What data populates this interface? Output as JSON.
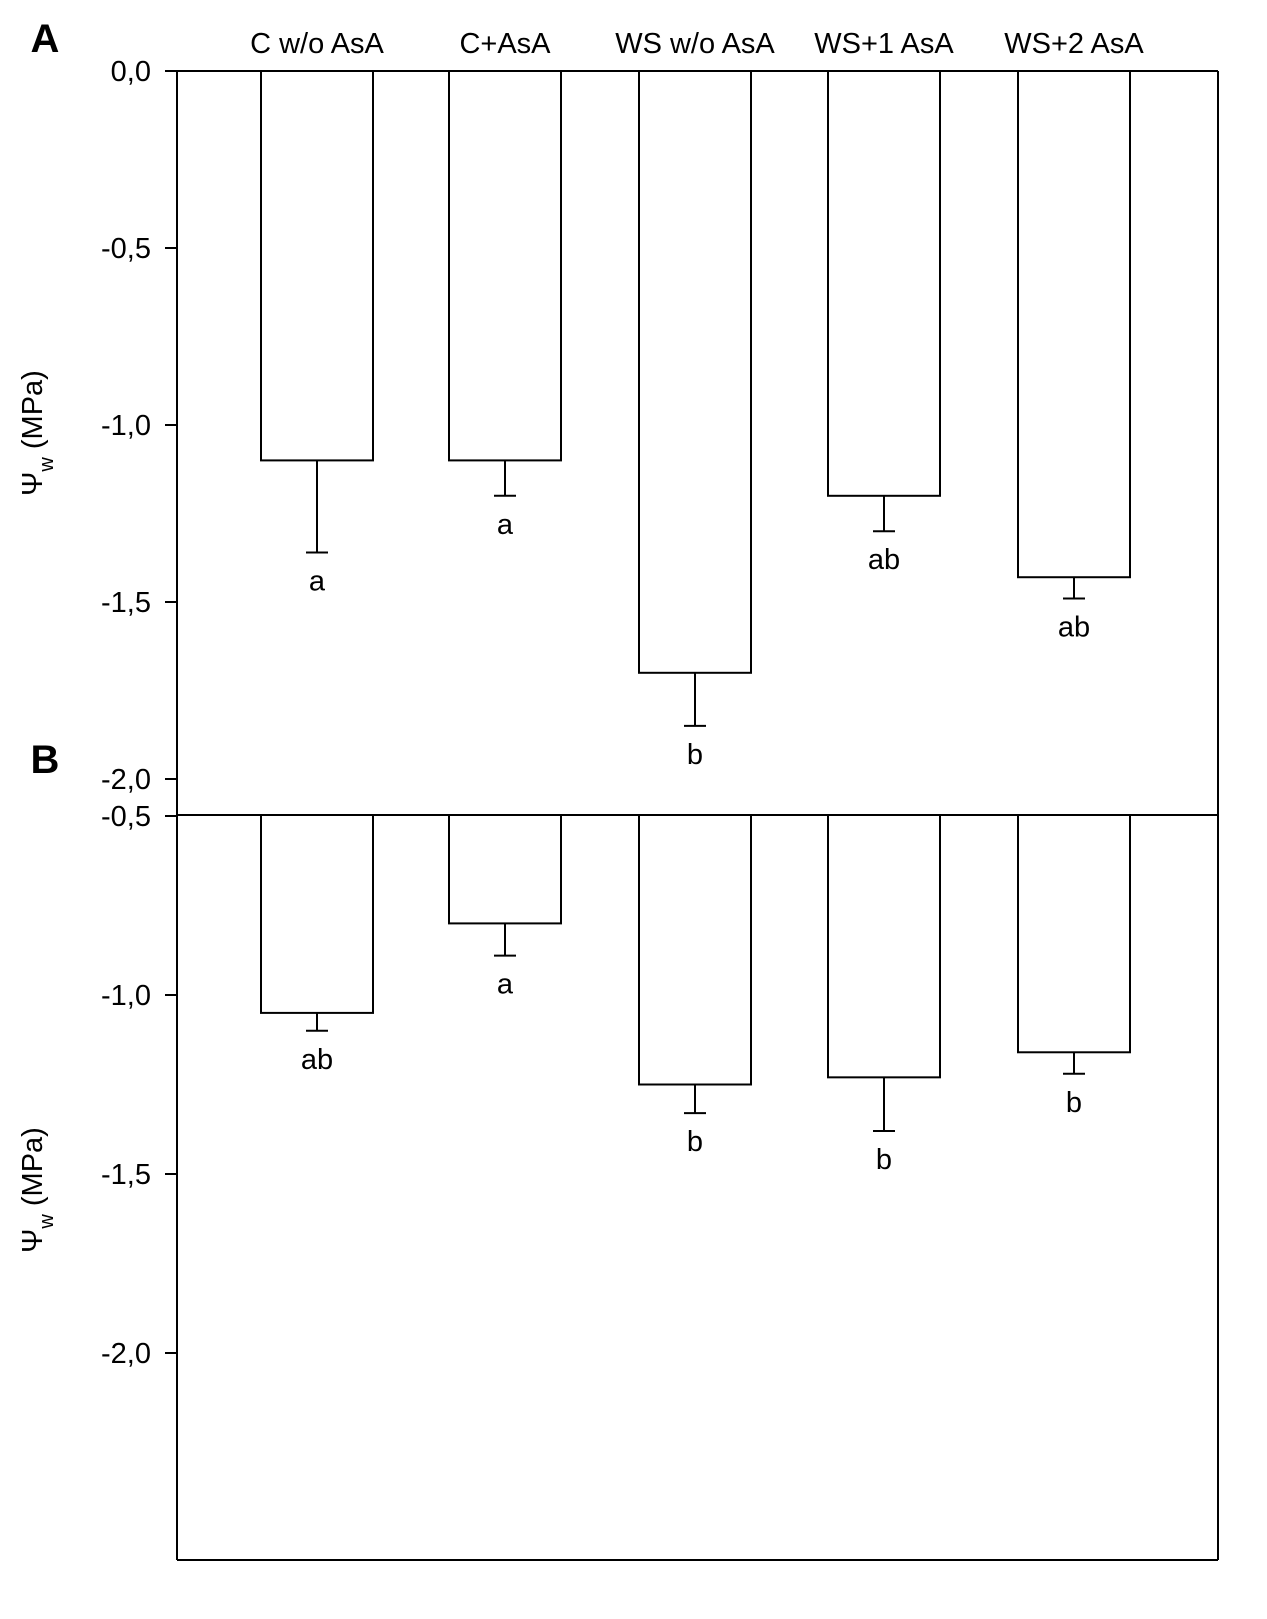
{
  "chart_data": [
    {
      "type": "bar",
      "panel": "A",
      "categories": [
        "C w/o AsA",
        "C+AsA",
        "WS w/o AsA",
        "WS+1 AsA",
        "WS+2 AsA"
      ],
      "values": [
        -1.1,
        -1.1,
        -1.7,
        -1.2,
        -1.43
      ],
      "error": [
        0.26,
        0.1,
        0.15,
        0.1,
        0.06
      ],
      "significance": [
        "a",
        "a",
        "b",
        "ab",
        "ab"
      ],
      "ylabel": "Ψw (MPa)",
      "ylim": [
        -2.1,
        0
      ],
      "yticks": [
        "0,0",
        "-0,5",
        "-1,0",
        "-1,5",
        "-2,0"
      ],
      "ytick_values": [
        0,
        -0.5,
        -1.0,
        -1.5,
        -2.0
      ],
      "xaxis_position": "top",
      "grid": false,
      "bar_fill": "#ffffff",
      "bar_stroke": "#000000"
    },
    {
      "type": "bar",
      "panel": "B",
      "categories": [
        "C w/o AsA",
        "C+AsA",
        "WS w/o AsA",
        "WS+1 AsA",
        "WS+2 AsA"
      ],
      "values": [
        -1.05,
        -0.8,
        -1.25,
        -1.23,
        -1.16
      ],
      "error": [
        0.05,
        0.09,
        0.08,
        0.15,
        0.06
      ],
      "significance": [
        "ab",
        "a",
        "b",
        "b",
        "b"
      ],
      "ylabel": "Ψw (MPa)",
      "ylim": [
        -2.1,
        0
      ],
      "yticks": [
        "-0,5",
        "-1,0",
        "-1,5",
        "-2,0"
      ],
      "ytick_values": [
        -0.5,
        -1.0,
        -1.5,
        -2.0
      ],
      "grid": false,
      "bar_fill": "#ffffff",
      "bar_stroke": "#000000"
    }
  ],
  "ylabel_main": "Ψ",
  "ylabel_sub": "w",
  "ylabel_unit": " (MPa)"
}
